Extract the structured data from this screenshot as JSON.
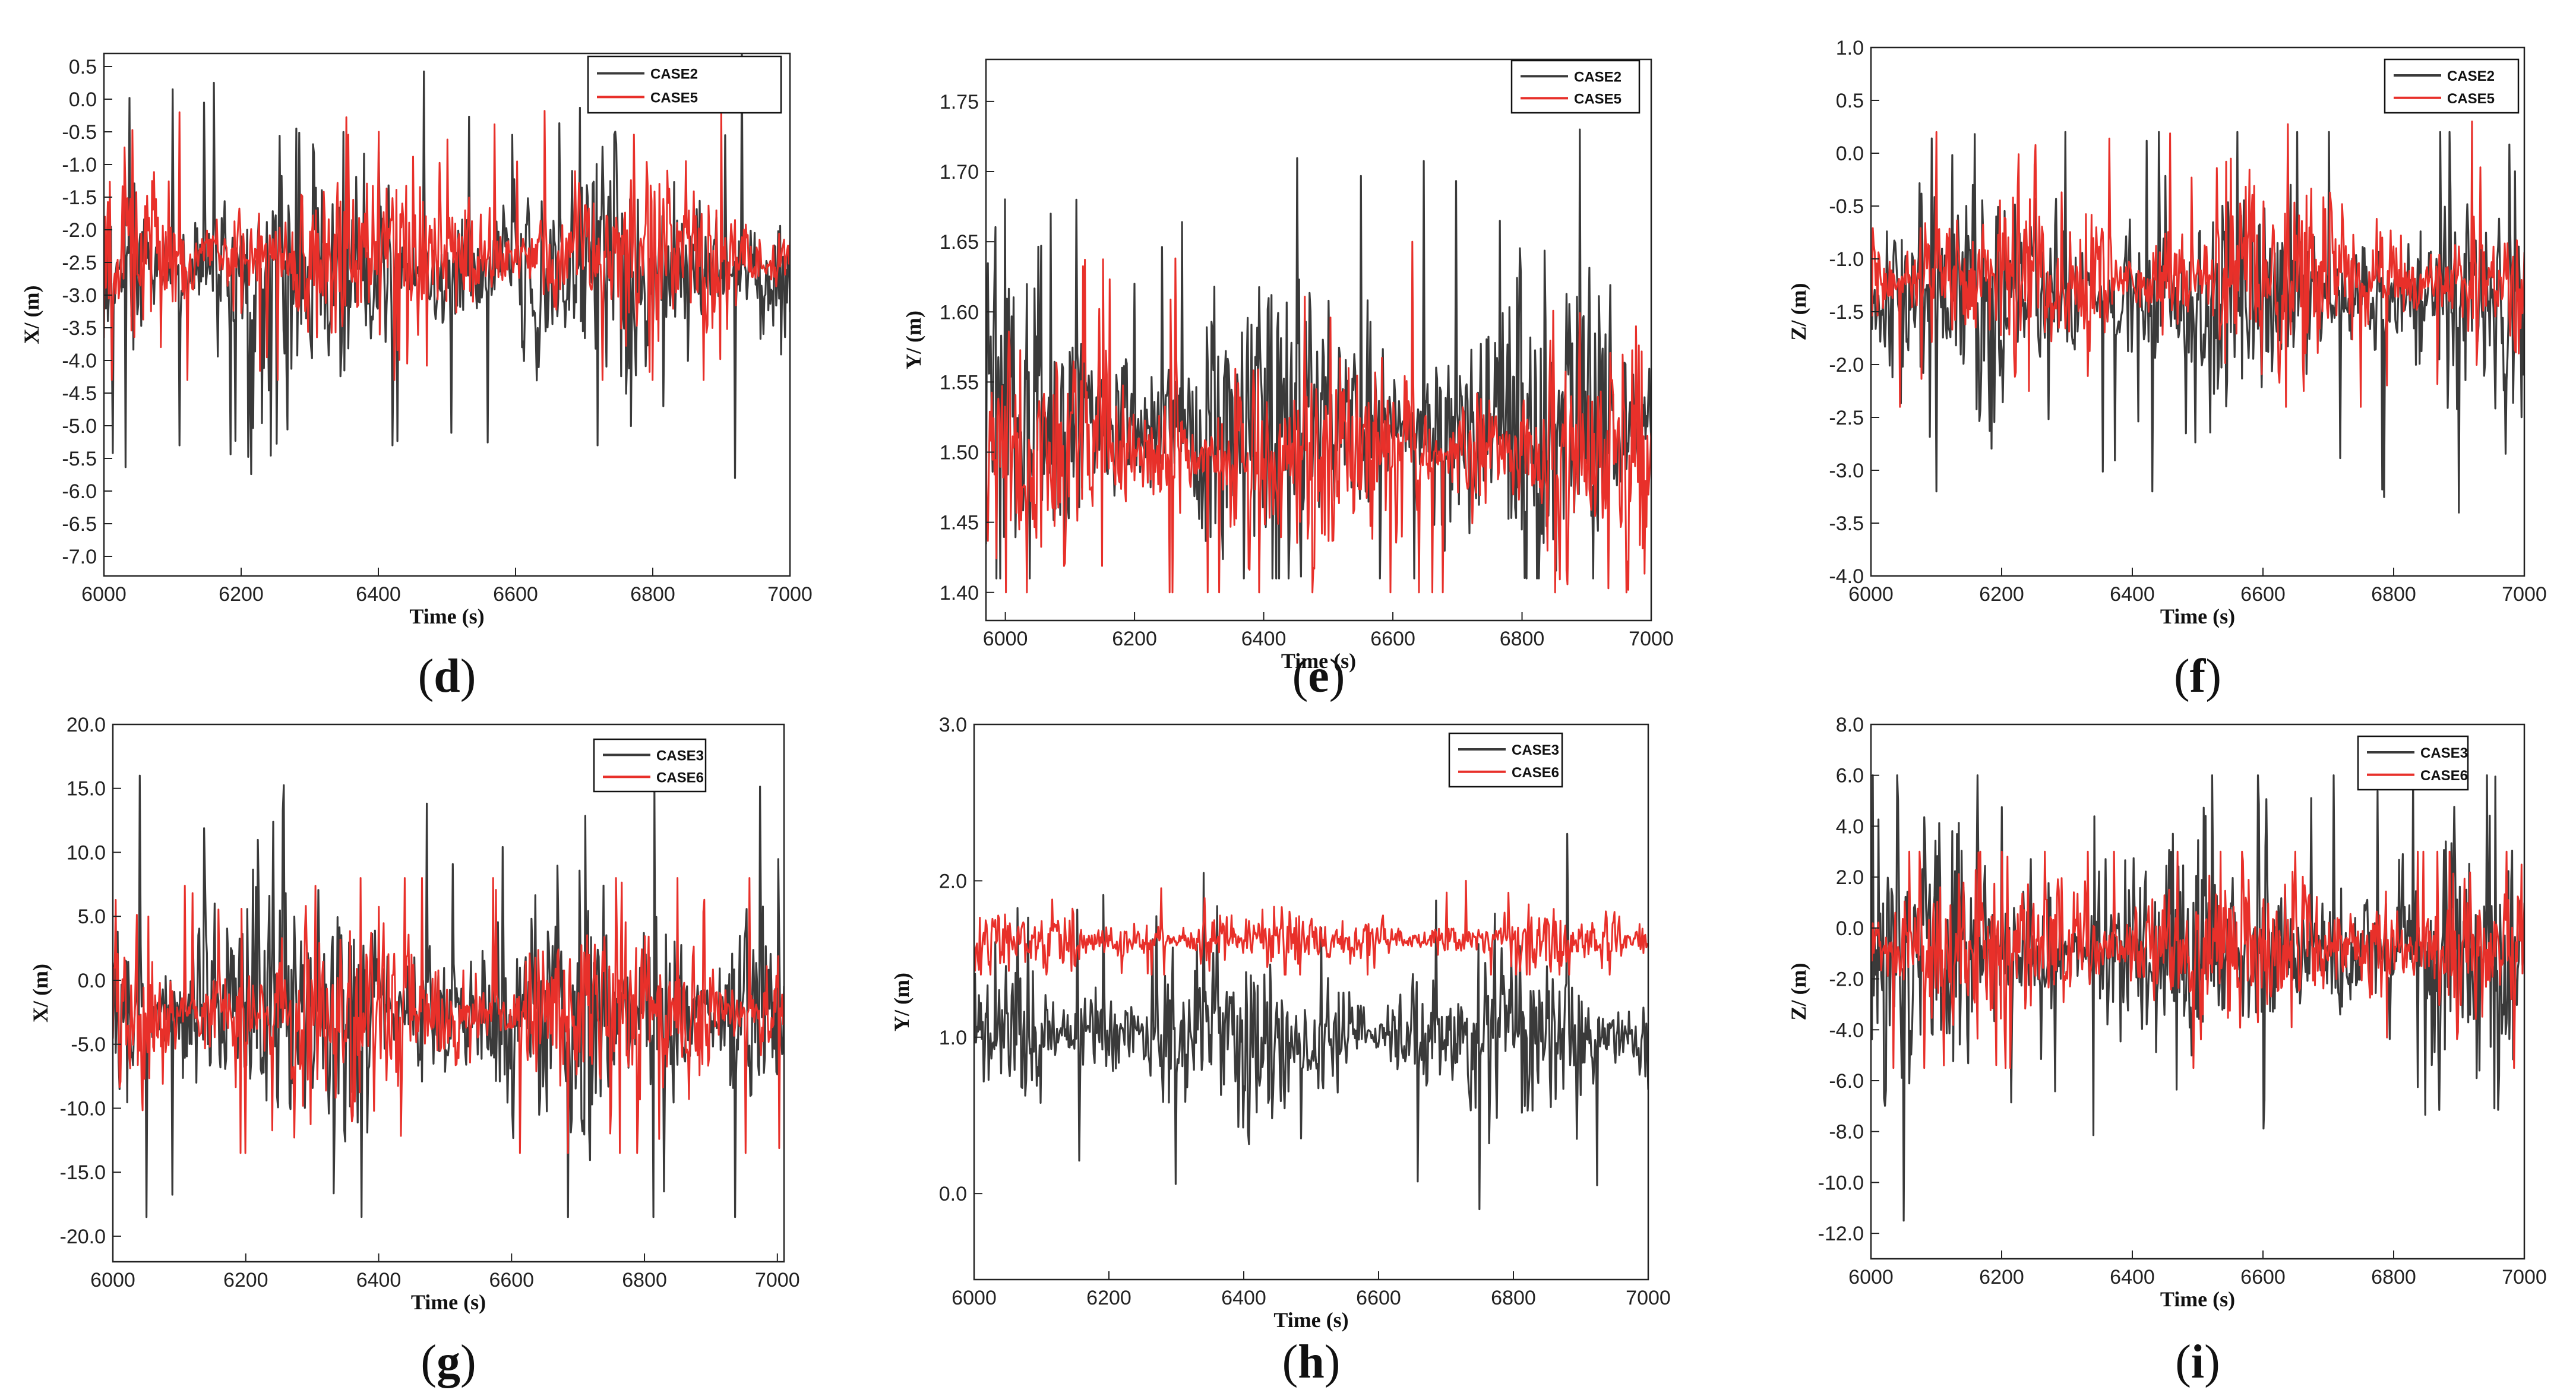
{
  "colors": {
    "dark_series": "#3a3a3a",
    "red_series": "#e8302a",
    "axis": "#222222",
    "background": "#ffffff"
  },
  "chart_data": [
    {
      "type": "line",
      "panel_label": "d",
      "xlabel": "Time (s)",
      "ylabel": "X/ (m)",
      "xlim": [
        6000,
        7000
      ],
      "ylim": [
        -7.3,
        0.7
      ],
      "x_ticks": [
        6000,
        6200,
        6400,
        6600,
        6800,
        7000
      ],
      "x_tick_labels": [
        "6000",
        "6200",
        "6400",
        "6600",
        "6800",
        "7000"
      ],
      "y_ticks": [
        0.5,
        0.0,
        -0.5,
        -1.0,
        -1.5,
        -2.0,
        -2.5,
        -3.0,
        -3.5,
        -4.0,
        -4.5,
        -5.0,
        -5.5,
        -6.0,
        -6.5,
        -7.0
      ],
      "y_tick_labels": [
        "0.5",
        "0.0",
        "-0.5",
        "-1.0",
        "-1.5",
        "-2.0",
        "-2.5",
        "-3.0",
        "-3.5",
        "-4.0",
        "-4.5",
        "-5.0",
        "-5.5",
        "-6.0",
        "-6.5",
        "-7.0"
      ],
      "legend": [
        "CASE2",
        "CASE5"
      ],
      "legend_position": "top-right",
      "series": [
        {
          "name": "CASE2",
          "color": "#3a3a3a",
          "mean": -2.6,
          "amplitude": 0.9,
          "min": -5.8,
          "max": 0.7,
          "x": [
            6100,
            6110,
            6420,
            6720,
            6920,
            6930
          ],
          "values": [
            0.15,
            -5.3,
            -5.3,
            -5.3,
            -5.8,
            0.7
          ]
        },
        {
          "name": "CASE5",
          "color": "#e8302a",
          "mean": -2.4,
          "amplitude": 0.7,
          "min": -4.3,
          "max": -0.1,
          "x": [
            6110,
            6400,
            6900
          ],
          "values": [
            -0.2,
            -0.5,
            -0.1
          ]
        }
      ]
    },
    {
      "type": "line",
      "panel_label": "e",
      "xlabel": "Time (s)",
      "ylabel": "Y/ (m)",
      "xlim": [
        5970,
        7000
      ],
      "ylim": [
        1.38,
        1.78
      ],
      "x_ticks": [
        6000,
        6200,
        6400,
        6600,
        6800,
        7000
      ],
      "x_tick_labels": [
        "6000",
        "6200",
        "6400",
        "6600",
        "6800",
        "7000"
      ],
      "y_ticks": [
        1.4,
        1.45,
        1.5,
        1.55,
        1.6,
        1.65,
        1.7,
        1.75
      ],
      "y_tick_labels": [
        "1.40",
        "1.45",
        "1.50",
        "1.55",
        "1.60",
        "1.65",
        "1.70",
        "1.75"
      ],
      "legend": [
        "CASE2",
        "CASE5"
      ],
      "legend_position": "top-right",
      "series": [
        {
          "name": "CASE2",
          "color": "#3a3a3a",
          "mean": 1.52,
          "amplitude": 0.06,
          "min": 1.41,
          "max": 1.73,
          "x": [
            6070,
            6110,
            6200,
            6890,
            6910
          ],
          "values": [
            1.67,
            1.68,
            1.62,
            1.73,
            1.41
          ]
        },
        {
          "name": "CASE5",
          "color": "#e8302a",
          "mean": 1.5,
          "amplitude": 0.04,
          "min": 1.4,
          "max": 1.65,
          "x": [
            6630,
            6640
          ],
          "values": [
            1.65,
            1.4
          ]
        }
      ]
    },
    {
      "type": "line",
      "panel_label": "f",
      "xlabel": "Time (s)",
      "ylabel": "Z/ (m)",
      "xlim": [
        6000,
        7000
      ],
      "ylim": [
        -4.0,
        1.0
      ],
      "x_ticks": [
        6000,
        6200,
        6400,
        6600,
        6800,
        7000
      ],
      "x_tick_labels": [
        "6000",
        "6200",
        "6400",
        "6600",
        "6800",
        "7000"
      ],
      "y_ticks": [
        1.0,
        0.5,
        0.0,
        -0.5,
        -1.0,
        -1.5,
        -2.0,
        -2.5,
        -3.0,
        -3.5,
        -4.0
      ],
      "y_tick_labels": [
        "1.0",
        "0.5",
        "0.0",
        "-0.5",
        "-1.0",
        "-1.5",
        "-2.0",
        "-2.5",
        "-3.0",
        "-3.5",
        "-4.0"
      ],
      "legend": [
        "CASE2",
        "CASE5"
      ],
      "legend_position": "top-right",
      "series": [
        {
          "name": "CASE2",
          "color": "#3a3a3a",
          "mean": -1.35,
          "amplitude": 0.55,
          "min": -3.4,
          "max": 0.2,
          "x": [
            6100,
            6430,
            6900
          ],
          "values": [
            -3.2,
            -3.2,
            -3.4
          ]
        },
        {
          "name": "CASE5",
          "color": "#e8302a",
          "mean": -1.2,
          "amplitude": 0.45,
          "min": -2.4,
          "max": 0.3,
          "x": [
            6100,
            6920
          ],
          "values": [
            0.2,
            0.3
          ]
        }
      ]
    },
    {
      "type": "line",
      "panel_label": "g",
      "xlabel": "Time (s)",
      "ylabel": "X/ (m)",
      "xlim": [
        6000,
        7010
      ],
      "ylim": [
        -22.0,
        20.0
      ],
      "x_ticks": [
        6000,
        6200,
        6400,
        6600,
        6800,
        7000
      ],
      "x_tick_labels": [
        "6000",
        "6200",
        "6400",
        "6600",
        "6800",
        "7000"
      ],
      "y_ticks": [
        20.0,
        15.0,
        10.0,
        5.0,
        0.0,
        -5.0,
        -10.0,
        -15.0,
        -20.0
      ],
      "y_tick_labels": [
        "20.0",
        "15.0",
        "10.0",
        "5.0",
        "0.0",
        "-5.0",
        "-10.0",
        "-15.0",
        "-20.0"
      ],
      "legend": [
        "CASE3",
        "CASE6"
      ],
      "legend_position": "top-right",
      "series": [
        {
          "name": "CASE3",
          "color": "#3a3a3a",
          "mean": -2.5,
          "amplitude": 5.5,
          "min": -18.5,
          "max": 16.0,
          "x": [
            6040,
            6050,
            6830
          ],
          "values": [
            16.0,
            -18.5,
            -16.5
          ]
        },
        {
          "name": "CASE6",
          "color": "#e8302a",
          "mean": -2.5,
          "amplitude": 3.8,
          "min": -13.5,
          "max": 8.0,
          "x": [
            6200,
            6850
          ],
          "values": [
            -13.5,
            8.0
          ]
        }
      ]
    },
    {
      "type": "line",
      "panel_label": "h",
      "xlabel": "Time (s)",
      "ylabel": "Y/ (m)",
      "xlim": [
        6000,
        7000
      ],
      "ylim": [
        -0.55,
        3.0
      ],
      "x_ticks": [
        6000,
        6200,
        6400,
        6600,
        6800,
        7000
      ],
      "x_tick_labels": [
        "6000",
        "6200",
        "6400",
        "6600",
        "6800",
        "7000"
      ],
      "y_ticks": [
        0.0,
        1.0,
        2.0,
        3.0
      ],
      "y_tick_labels": [
        "0.0",
        "1.0",
        "2.0",
        "3.0"
      ],
      "legend": [
        "CASE3",
        "CASE6"
      ],
      "legend_position": "top-right",
      "series": [
        {
          "name": "CASE3",
          "color": "#3a3a3a",
          "mean": 1.0,
          "amplitude": 0.28,
          "min": -0.1,
          "max": 2.3,
          "x": [
            6340,
            6750,
            6880
          ],
          "values": [
            2.05,
            -0.1,
            2.3
          ]
        },
        {
          "name": "CASE6",
          "color": "#e8302a",
          "mean": 1.62,
          "amplitude": 0.1,
          "min": 1.4,
          "max": 2.0,
          "x": [
            6730
          ],
          "values": [
            2.0
          ]
        }
      ]
    },
    {
      "type": "line",
      "panel_label": "i",
      "xlabel": "Time (s)",
      "ylabel": "Z/ (m)",
      "xlim": [
        6000,
        7000
      ],
      "ylim": [
        -13.0,
        8.0
      ],
      "x_ticks": [
        6000,
        6200,
        6400,
        6600,
        6800,
        7000
      ],
      "x_tick_labels": [
        "6000",
        "6200",
        "6400",
        "6600",
        "6800",
        "7000"
      ],
      "y_ticks": [
        8.0,
        6.0,
        4.0,
        2.0,
        0.0,
        -2.0,
        -4.0,
        -6.0,
        -8.0,
        -10.0,
        -12.0
      ],
      "y_tick_labels": [
        "8.0",
        "6.0",
        "4.0",
        "2.0",
        "0.0",
        "-2.0",
        "-4.0",
        "-6.0",
        "-8.0",
        "-10.0",
        "-12.0"
      ],
      "legend": [
        "CASE3",
        "CASE6"
      ],
      "legend_position": "top-right",
      "series": [
        {
          "name": "CASE3",
          "color": "#3a3a3a",
          "mean": -1.0,
          "amplitude": 2.6,
          "min": -11.5,
          "max": 6.0,
          "x": [
            6040,
            6050
          ],
          "values": [
            6.0,
            -11.5
          ]
        },
        {
          "name": "CASE6",
          "color": "#e8302a",
          "mean": -0.8,
          "amplitude": 1.7,
          "min": -5.5,
          "max": 3.0,
          "x": [
            6200
          ],
          "values": [
            3.0
          ]
        }
      ]
    }
  ]
}
